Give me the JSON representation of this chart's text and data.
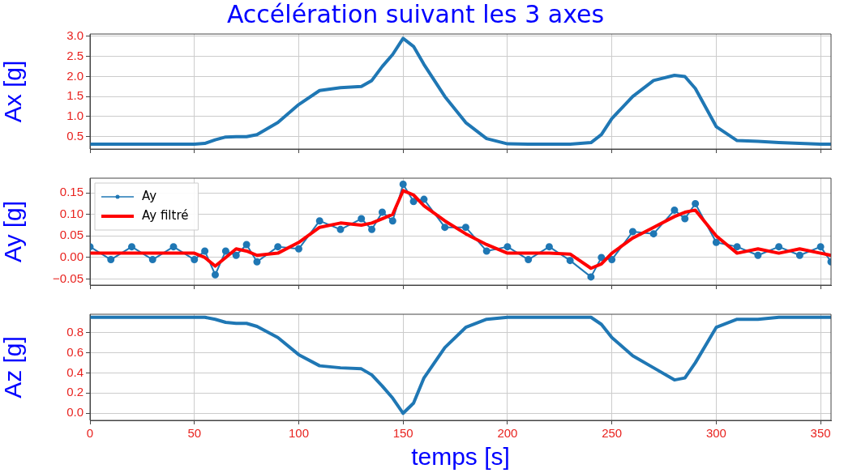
{
  "chart_data": [
    {
      "type": "line",
      "title": "Accélération suivant les 3 axes",
      "ylabel": "Ax [g]",
      "x": [
        0,
        10,
        20,
        30,
        40,
        50,
        55,
        60,
        65,
        70,
        75,
        80,
        90,
        100,
        110,
        120,
        130,
        135,
        140,
        145,
        150,
        155,
        160,
        170,
        180,
        190,
        200,
        210,
        220,
        230,
        240,
        245,
        250,
        260,
        270,
        280,
        285,
        290,
        300,
        310,
        320,
        330,
        340,
        350,
        355
      ],
      "series": [
        {
          "color": "#1f77b4",
          "values": [
            0.31,
            0.31,
            0.31,
            0.31,
            0.31,
            0.31,
            0.33,
            0.42,
            0.49,
            0.5,
            0.5,
            0.55,
            0.85,
            1.3,
            1.65,
            1.72,
            1.75,
            1.9,
            2.25,
            2.55,
            2.95,
            2.75,
            2.3,
            1.5,
            0.85,
            0.45,
            0.32,
            0.31,
            0.31,
            0.31,
            0.35,
            0.55,
            0.95,
            1.5,
            1.9,
            2.03,
            2.0,
            1.7,
            0.75,
            0.4,
            0.38,
            0.35,
            0.33,
            0.31,
            0.31
          ]
        }
      ],
      "xlim": [
        0,
        355
      ],
      "xticks": [
        0,
        50,
        100,
        150,
        200,
        250,
        300,
        350
      ],
      "ylim": [
        0.19,
        3.06
      ],
      "yticks": [
        {
          "value": 0.5,
          "label": "0.5"
        },
        {
          "value": 1,
          "label": "1.0"
        },
        {
          "value": 1.5,
          "label": "1.5"
        },
        {
          "value": 2,
          "label": "2.0"
        },
        {
          "value": 2.5,
          "label": "2.5"
        },
        {
          "value": 3,
          "label": "3.0"
        }
      ],
      "grid": true,
      "tick_labels": "y",
      "legend": false
    },
    {
      "type": "line",
      "ylabel": "Ay [g]",
      "x": [
        0,
        10,
        20,
        30,
        40,
        50,
        55,
        60,
        65,
        70,
        75,
        80,
        90,
        100,
        110,
        120,
        130,
        135,
        140,
        145,
        150,
        155,
        160,
        170,
        180,
        190,
        200,
        210,
        220,
        230,
        240,
        245,
        250,
        260,
        270,
        280,
        285,
        290,
        300,
        310,
        320,
        330,
        340,
        350,
        355
      ],
      "series": [
        {
          "name": "Ay",
          "color": "#1f77b4",
          "marker": "circle",
          "values": [
            0.025,
            -0.005,
            0.025,
            -0.005,
            0.025,
            -0.005,
            0.015,
            -0.04,
            0.015,
            0.005,
            0.03,
            -0.01,
            0.025,
            0.02,
            0.085,
            0.065,
            0.09,
            0.065,
            0.105,
            0.085,
            0.17,
            0.13,
            0.135,
            0.07,
            0.07,
            0.015,
            0.025,
            -0.005,
            0.025,
            -0.007,
            -0.045,
            0.0,
            -0.005,
            0.06,
            0.055,
            0.11,
            0.09,
            0.125,
            0.035,
            0.025,
            0.005,
            0.025,
            0.005,
            0.025,
            -0.01
          ]
        },
        {
          "name": "Ay filtré",
          "color": "#ff0000",
          "marker": "none",
          "values": [
            0.01,
            0.01,
            0.01,
            0.01,
            0.01,
            0.01,
            0.0,
            -0.02,
            0.0,
            0.02,
            0.015,
            0.005,
            0.01,
            0.035,
            0.07,
            0.08,
            0.075,
            0.08,
            0.09,
            0.1,
            0.155,
            0.145,
            0.12,
            0.085,
            0.055,
            0.03,
            0.01,
            0.01,
            0.01,
            0.008,
            -0.025,
            -0.015,
            0.01,
            0.045,
            0.07,
            0.095,
            0.105,
            0.11,
            0.05,
            0.01,
            0.02,
            0.01,
            0.02,
            0.01,
            0.005
          ]
        }
      ],
      "xlim": [
        0,
        355
      ],
      "xticks": [
        0,
        50,
        100,
        150,
        200,
        250,
        300,
        350
      ],
      "ylim": [
        -0.064,
        0.184
      ],
      "yticks": [
        {
          "value": -0.05,
          "label": "−0.05"
        },
        {
          "value": 0,
          "label": "0.00"
        },
        {
          "value": 0.05,
          "label": "0.05"
        },
        {
          "value": 0.1,
          "label": "0.10"
        },
        {
          "value": 0.15,
          "label": "0.15"
        }
      ],
      "grid": true,
      "tick_labels": "y",
      "legend": "top left"
    },
    {
      "type": "line",
      "ylabel": "Az [g]",
      "xlabel": "temps [s]",
      "x": [
        0,
        10,
        20,
        30,
        40,
        50,
        55,
        60,
        65,
        70,
        75,
        80,
        90,
        100,
        110,
        120,
        130,
        135,
        140,
        145,
        150,
        155,
        160,
        170,
        180,
        190,
        200,
        210,
        220,
        230,
        240,
        245,
        250,
        260,
        270,
        280,
        285,
        290,
        300,
        310,
        320,
        330,
        340,
        350,
        355
      ],
      "series": [
        {
          "color": "#1f77b4",
          "values": [
            0.95,
            0.95,
            0.95,
            0.95,
            0.95,
            0.95,
            0.95,
            0.93,
            0.9,
            0.89,
            0.89,
            0.86,
            0.75,
            0.58,
            0.47,
            0.45,
            0.44,
            0.38,
            0.27,
            0.15,
            0.0,
            0.1,
            0.35,
            0.65,
            0.85,
            0.93,
            0.95,
            0.95,
            0.95,
            0.95,
            0.95,
            0.88,
            0.75,
            0.57,
            0.45,
            0.33,
            0.35,
            0.5,
            0.85,
            0.93,
            0.93,
            0.95,
            0.95,
            0.95,
            0.95
          ]
        }
      ],
      "xlim": [
        0,
        355
      ],
      "xticks": [
        0,
        50,
        100,
        150,
        200,
        250,
        300,
        350
      ],
      "ylim": [
        -0.07,
        0.98
      ],
      "yticks": [
        {
          "value": 0,
          "label": "0.0"
        },
        {
          "value": 0.2,
          "label": "0.2"
        },
        {
          "value": 0.4,
          "label": "0.4"
        },
        {
          "value": 0.6,
          "label": "0.6"
        },
        {
          "value": 0.8,
          "label": "0.8"
        }
      ],
      "grid": true,
      "legend": false
    }
  ]
}
